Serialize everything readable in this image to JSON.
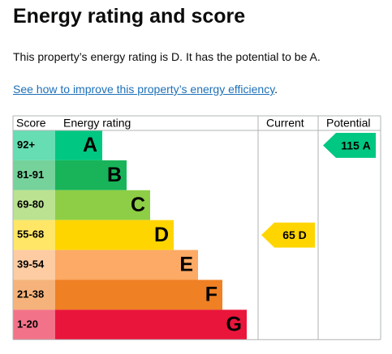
{
  "heading": "Energy rating and score",
  "summary": "This property’s energy rating is D. It has the potential to be A.",
  "link": "See how to improve this property’s energy efficiency",
  "link_end": ".",
  "table": {
    "headers": [
      "Score",
      "Energy rating",
      "Current",
      "Potential"
    ],
    "bands": [
      {
        "score": "92+",
        "rating": "A",
        "color": "#00c781",
        "light": "#66ddb3"
      },
      {
        "score": "81-91",
        "rating": "B",
        "color": "#19b459",
        "light": "#75d29b"
      },
      {
        "score": "69-80",
        "rating": "C",
        "color": "#8dce46",
        "light": "#bbe290"
      },
      {
        "score": "55-68",
        "rating": "D",
        "color": "#ffd500",
        "light": "#ffe666"
      },
      {
        "score": "39-54",
        "rating": "E",
        "color": "#fcaa65",
        "light": "#fdcca3"
      },
      {
        "score": "21-38",
        "rating": "F",
        "color": "#ef8023",
        "light": "#f5b37b"
      },
      {
        "score": "1-20",
        "rating": "G",
        "color": "#e9153b",
        "light": "#f27389"
      }
    ],
    "current": {
      "score": 65,
      "rating": "D"
    },
    "potential": {
      "score": 115,
      "rating": "A"
    }
  }
}
